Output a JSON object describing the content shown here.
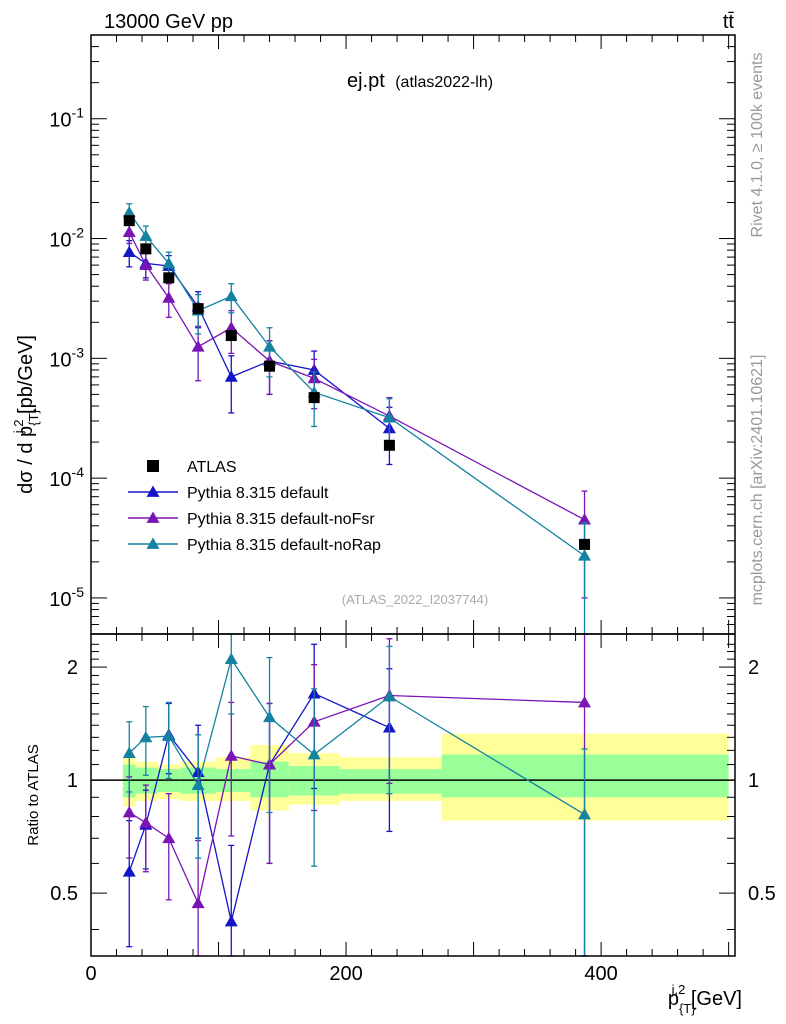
{
  "header": {
    "energy_label": "13000 GeV pp",
    "process_label": "tt̄",
    "title_main": "ej.pt",
    "title_sub": "(atlas2022-lh)",
    "analysis_id": "(ATLAS_2022_I2037744)",
    "rivet_label": "Rivet 4.1.0, ≥ 100k events",
    "mcplots_label": "mcplots.cern.ch [arXiv:2401.10621]"
  },
  "colors": {
    "atlas": "#000000",
    "default": "#1414c8",
    "noFsr": "#7a14b4",
    "noRap": "#1482a0",
    "band_inner": "#99ff99",
    "band_outer": "#ffff99"
  },
  "chart_data": [
    {
      "type": "scatter",
      "scale": "log",
      "ylabel": "dσ / d p_{T}^{j,2} [pb/GeV]",
      "xlim": [
        0,
        505
      ],
      "ylim": [
        5e-06,
        0.5
      ],
      "ytick_labels": [
        "10^{-5}",
        "10^{-4}",
        "10^{-3}",
        "10^{-2}",
        "10^{-1}"
      ],
      "ytick_values": [
        1e-05,
        0.0001,
        0.001,
        0.01,
        0.1
      ],
      "legend": [
        "ATLAS",
        "Pythia 8.315 default",
        "Pythia 8.315 default-noFsr",
        "Pythia 8.315 default-noRap"
      ],
      "legend_position": "lower-left",
      "series": [
        {
          "name": "ATLAS",
          "x": [
            30,
            43,
            61,
            84,
            110,
            140,
            175,
            234,
            387
          ],
          "y": [
            0.0141,
            0.0082,
            0.0047,
            0.0026,
            0.00155,
            0.00086,
            0.00047,
            0.000188,
            2.8e-05
          ]
        },
        {
          "name": "Pythia 8.315 default",
          "x": [
            30,
            43,
            61,
            84,
            110,
            140,
            175,
            234,
            387
          ],
          "y": [
            0.0077,
            0.0062,
            0.0059,
            0.0027,
            0.0007,
            0.00095,
            0.0008,
            0.00026,
            null
          ],
          "err_lo": [
            0.0019,
            0.0015,
            0.0013,
            0.0009,
            0.00035,
            0.00045,
            0.00035,
            0.00013,
            null
          ],
          "err_hi": [
            0.0019,
            0.0015,
            0.0013,
            0.0009,
            0.00035,
            0.00045,
            0.00035,
            0.00013,
            null
          ]
        },
        {
          "name": "Pythia 8.315 default-noFsr",
          "x": [
            30,
            43,
            61,
            84,
            110,
            140,
            175,
            234,
            387
          ],
          "y": [
            0.0113,
            0.006,
            0.0032,
            0.00125,
            0.0018,
            0.00095,
            0.00068,
            0.00033,
            4.5e-05
          ],
          "err_lo": [
            0.0022,
            0.0015,
            0.001,
            0.0006,
            0.0007,
            0.00045,
            0.0003,
            0.00014,
            3.5e-05
          ],
          "err_hi": [
            0.0022,
            0.0015,
            0.001,
            0.0006,
            0.0007,
            0.00045,
            0.0003,
            0.00014,
            3.3e-05
          ]
        },
        {
          "name": "Pythia 8.315 default-noRap",
          "x": [
            30,
            43,
            61,
            84,
            110,
            140,
            175,
            234,
            387
          ],
          "y": [
            0.0165,
            0.0105,
            0.0062,
            0.0025,
            0.0033,
            0.00125,
            0.00052,
            0.00032,
            2.25e-05
          ],
          "err_lo": [
            0.003,
            0.0022,
            0.0015,
            0.0009,
            0.0009,
            0.00055,
            0.00025,
            0.00014,
            2e-05
          ],
          "err_hi": [
            0.003,
            0.0022,
            0.0015,
            0.0009,
            0.0009,
            0.00055,
            0.00025,
            0.00014,
            2e-05
          ]
        }
      ]
    },
    {
      "type": "scatter",
      "scale": "log",
      "xlabel": "p_{T}^{j,2} [GeV]",
      "ylabel": "Ratio to ATLAS",
      "xlim": [
        0,
        505
      ],
      "ylim": [
        0.34,
        2.45
      ],
      "xtick_labels": [
        "0",
        "200",
        "400"
      ],
      "xtick_values": [
        0,
        200,
        400
      ],
      "ytick_labels": [
        "0.5",
        "1",
        "2"
      ],
      "ytick_values": [
        0.5,
        1,
        2
      ],
      "band_bins": [
        25,
        35,
        52,
        70,
        98,
        125,
        155,
        195,
        275,
        500
      ],
      "band_inner": [
        [
          0.9,
          1.1
        ],
        [
          0.92,
          1.08
        ],
        [
          0.93,
          1.07
        ],
        [
          0.92,
          1.08
        ],
        [
          0.93,
          1.07
        ],
        [
          0.9,
          1.12
        ],
        [
          0.91,
          1.09
        ],
        [
          0.92,
          1.07
        ],
        [
          0.9,
          1.17
        ]
      ],
      "band_outer": [
        [
          0.85,
          1.15
        ],
        [
          0.88,
          1.12
        ],
        [
          0.89,
          1.1
        ],
        [
          0.88,
          1.12
        ],
        [
          0.88,
          1.15
        ],
        [
          0.83,
          1.24
        ],
        [
          0.86,
          1.18
        ],
        [
          0.88,
          1.15
        ],
        [
          0.78,
          1.33
        ]
      ],
      "series": [
        {
          "name": "Pythia 8.315 default",
          "x": [
            30,
            43,
            61,
            84,
            110,
            140,
            175,
            234
          ],
          "y": [
            0.57,
            0.76,
            1.32,
            1.05,
            0.42,
            1.1,
            1.7,
            1.38
          ],
          "err_lo": [
            0.21,
            0.18,
            0.28,
            0.35,
            0.2,
            0.5,
            0.75,
            0.65
          ],
          "err_hi": [
            0.21,
            0.18,
            0.28,
            0.35,
            0.25,
            0.5,
            0.6,
            0.6
          ]
        },
        {
          "name": "Pythia 8.315 default-noFsr",
          "x": [
            30,
            43,
            61,
            84,
            110,
            140,
            175,
            234,
            387
          ],
          "y": [
            0.82,
            0.77,
            0.7,
            0.47,
            1.16,
            1.1,
            1.43,
            1.68,
            1.61
          ],
          "err_lo": [
            0.2,
            0.2,
            0.22,
            0.22,
            0.45,
            0.5,
            0.6,
            0.7,
            1.3
          ],
          "err_hi": [
            0.2,
            0.2,
            0.22,
            0.22,
            0.45,
            0.5,
            0.6,
            0.7,
            0.84
          ]
        },
        {
          "name": "Pythia 8.315 default-noRap",
          "x": [
            30,
            43,
            61,
            84,
            110,
            140,
            175,
            234,
            387
          ],
          "y": [
            1.18,
            1.3,
            1.31,
            0.97,
            2.1,
            1.47,
            1.17,
            1.67,
            0.81
          ],
          "err_lo": [
            0.25,
            0.27,
            0.3,
            0.35,
            0.6,
            0.65,
            0.58,
            0.75,
            0.48
          ],
          "err_hi": [
            0.25,
            0.27,
            0.3,
            0.35,
            0.6,
            0.65,
            0.58,
            0.6,
            0.4
          ]
        }
      ]
    }
  ]
}
